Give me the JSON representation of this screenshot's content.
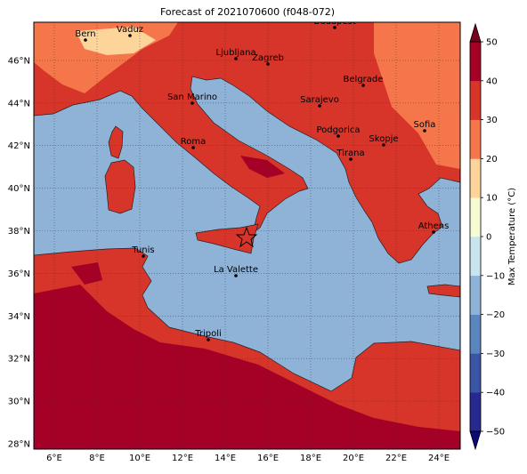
{
  "title": "Forecast of 2021070600 (f048-072)",
  "map": {
    "lat_labels": [
      "28°N",
      "30°N",
      "32°N",
      "34°N",
      "36°N",
      "38°N",
      "40°N",
      "42°N",
      "44°N",
      "46°N"
    ],
    "lon_labels": [
      "6°E",
      "8°E",
      "10°E",
      "12°E",
      "14°E",
      "16°E",
      "18°E",
      "20°E",
      "22°E",
      "24°E"
    ],
    "cities": [
      "Bern",
      "Vaduz",
      "Budapest",
      "Ljubljana",
      "Zagreb",
      "Belgrade",
      "San Marino",
      "Sarajevo",
      "Sofia",
      "Podgorica",
      "Skopje",
      "Roma",
      "Tirana",
      "Athens",
      "Tunis",
      "La Valette",
      "Tripoli"
    ]
  },
  "colorbar": {
    "label": "Max Temperature (°C)",
    "lim": [
      -50,
      50
    ],
    "ticks": [
      50,
      40,
      30,
      20,
      10,
      0,
      {
        "value": -10,
        "label": "−10"
      },
      {
        "value": -20,
        "label": "−20"
      },
      {
        "value": -30,
        "label": "−30"
      },
      {
        "value": -40,
        "label": "−40"
      },
      {
        "value": -50,
        "label": "−50"
      }
    ],
    "colors": [
      "#252990",
      "#3a55a5",
      "#5a86bd",
      "#8fb2d7",
      "#c8e4ef",
      "#f6fbd4",
      "#fdd49a",
      "#f4764a",
      "#d7342a",
      "#a50026"
    ],
    "under_color": "#0a0a78",
    "over_color": "#7a0020"
  }
}
